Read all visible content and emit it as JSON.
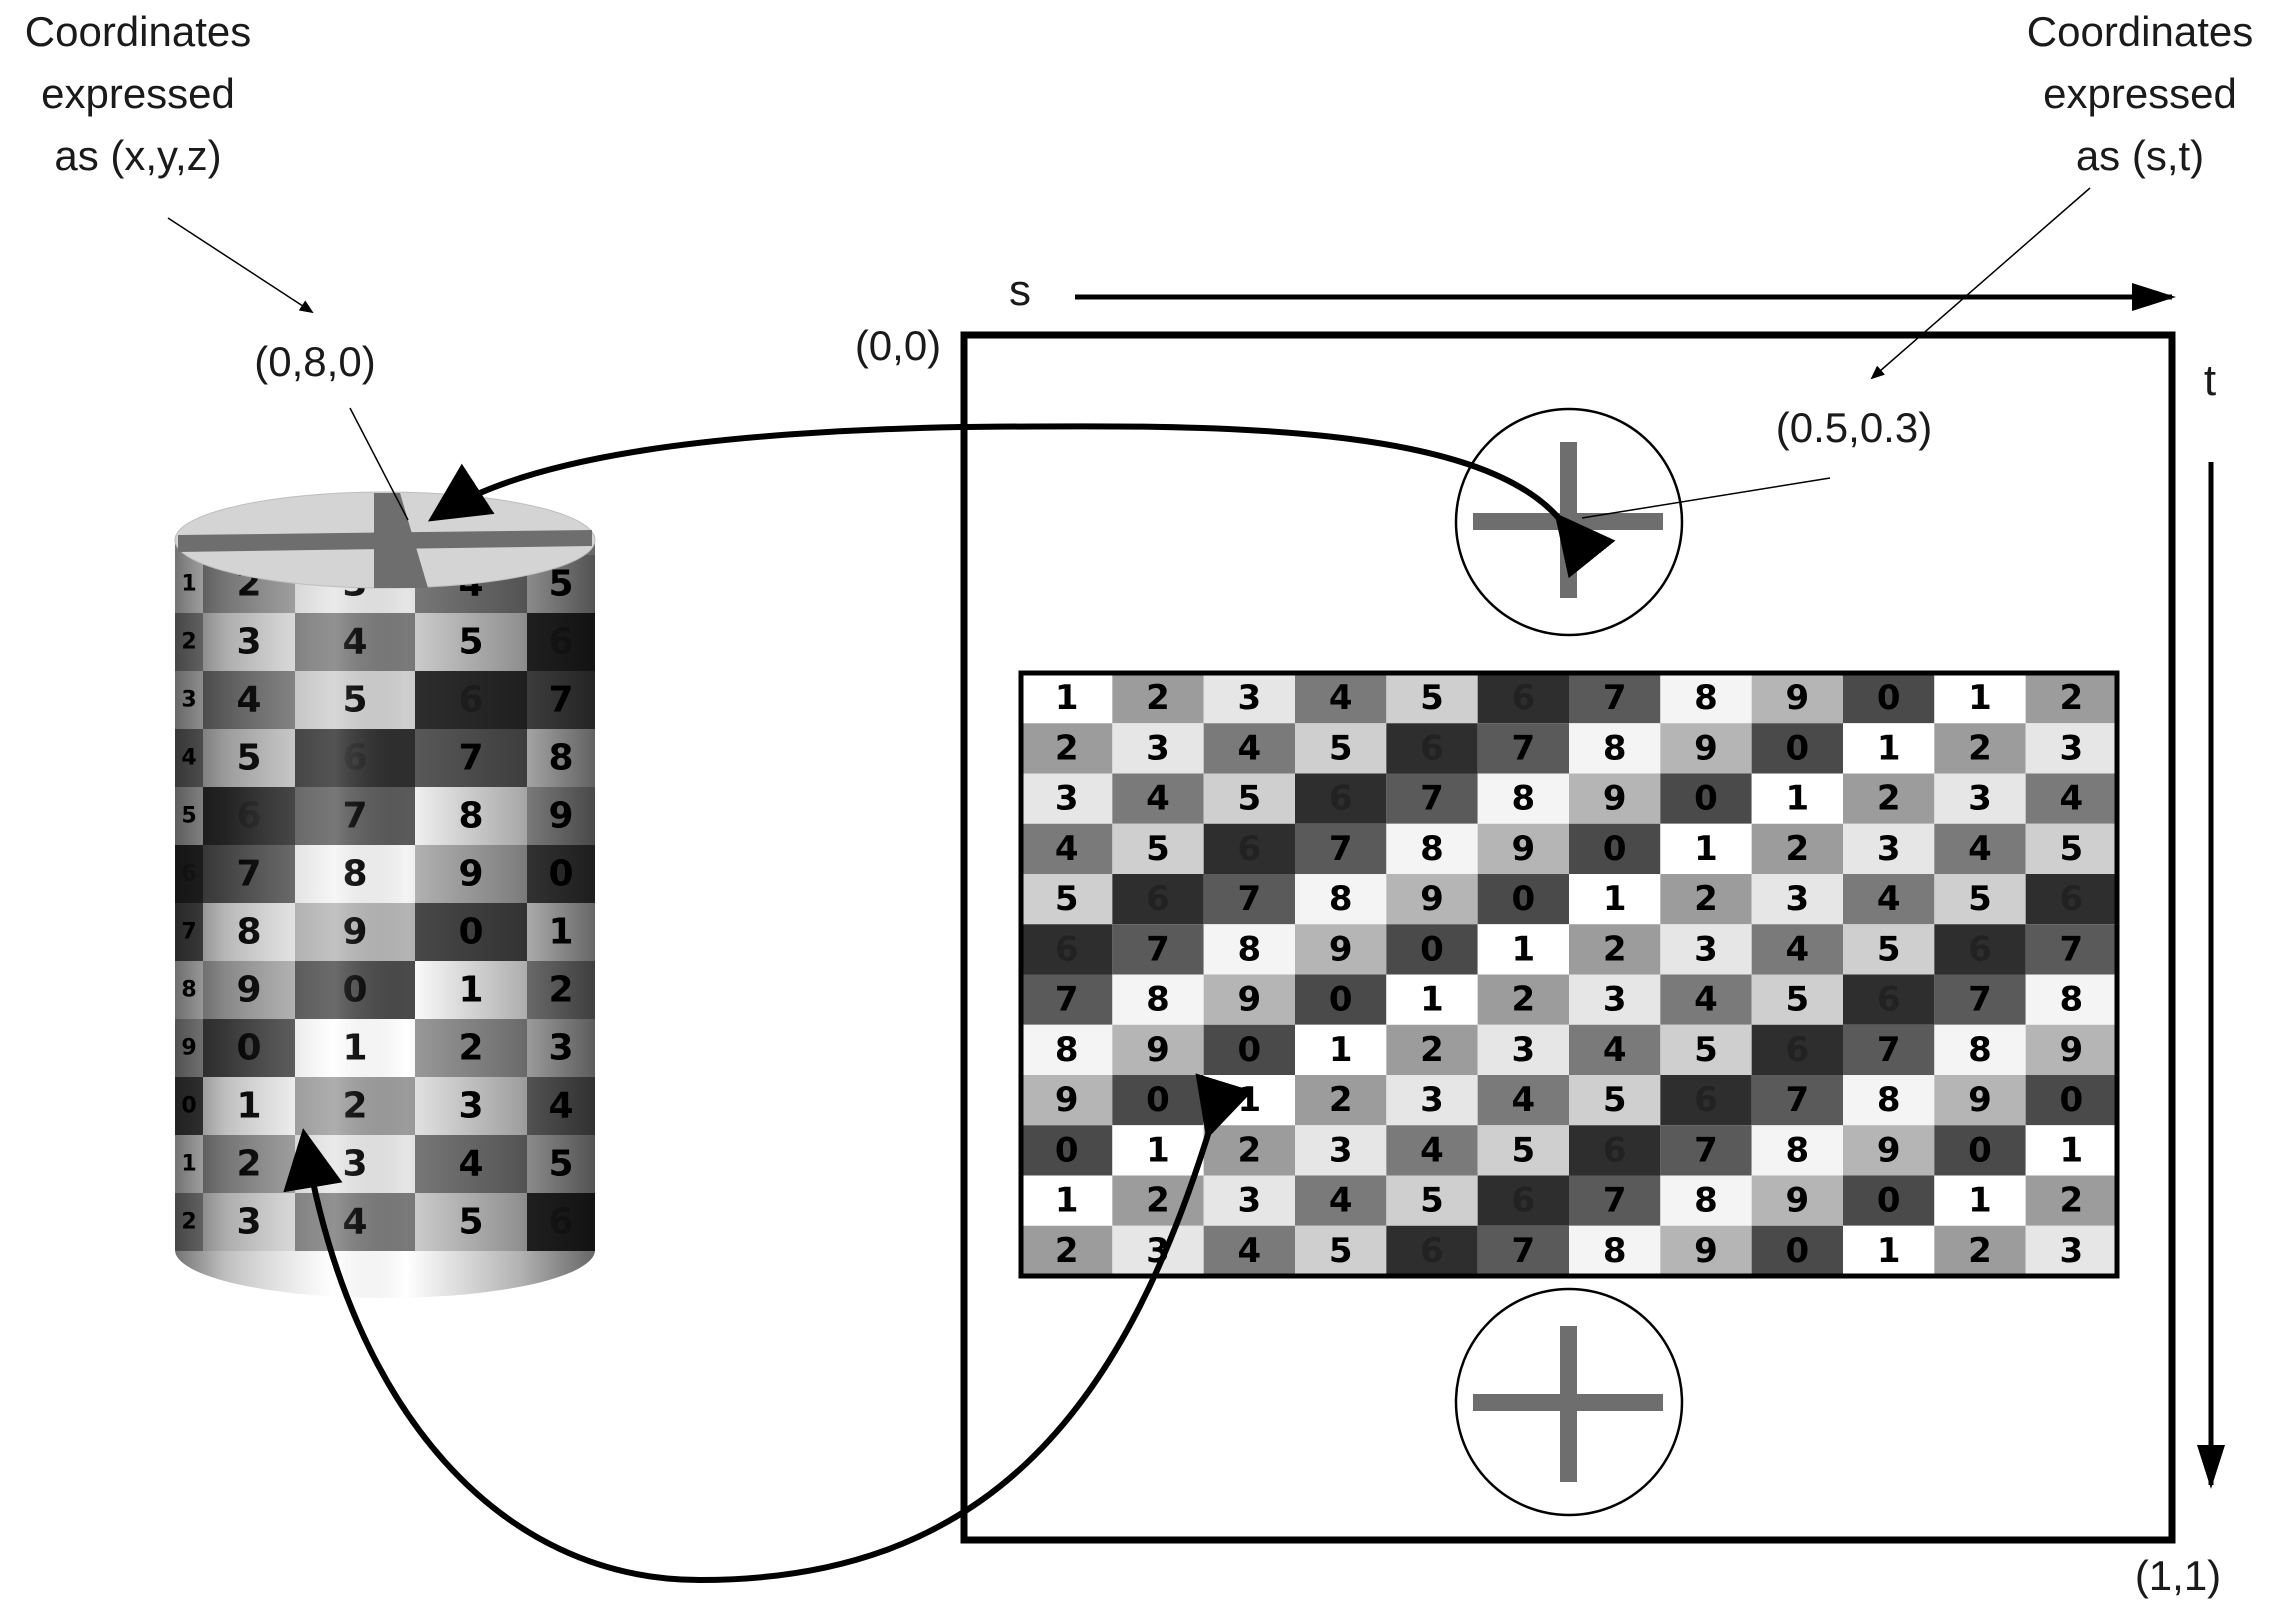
{
  "annotations": {
    "xyz_caption": [
      "Coordinates",
      "expressed",
      "as (x,y,z)"
    ],
    "st_caption": [
      "Coordinates",
      "expressed",
      "as (s,t)"
    ],
    "point_xyz": "(0,8,0)",
    "point_st": "(0.5,0.3)",
    "origin": "(0,0)",
    "corner": "(1,1)",
    "s_axis": "s",
    "t_axis": "t"
  },
  "texture": {
    "rows": [
      [
        "1",
        "2",
        "3",
        "4",
        "5",
        "6",
        "7",
        "8",
        "9",
        "0",
        "1",
        "2"
      ],
      [
        "2",
        "3",
        "4",
        "5",
        "6",
        "7",
        "8",
        "9",
        "0",
        "1",
        "2",
        "3"
      ],
      [
        "3",
        "4",
        "5",
        "6",
        "7",
        "8",
        "9",
        "0",
        "1",
        "2",
        "3",
        "4"
      ],
      [
        "4",
        "5",
        "6",
        "7",
        "8",
        "9",
        "0",
        "1",
        "2",
        "3",
        "4",
        "5"
      ],
      [
        "5",
        "6",
        "7",
        "8",
        "9",
        "0",
        "1",
        "2",
        "3",
        "4",
        "5",
        "6"
      ],
      [
        "6",
        "7",
        "8",
        "9",
        "0",
        "1",
        "2",
        "3",
        "4",
        "5",
        "6",
        "7"
      ],
      [
        "7",
        "8",
        "9",
        "0",
        "1",
        "2",
        "3",
        "4",
        "5",
        "6",
        "7",
        "8"
      ],
      [
        "8",
        "9",
        "0",
        "1",
        "2",
        "3",
        "4",
        "5",
        "6",
        "7",
        "8",
        "9"
      ],
      [
        "9",
        "0",
        "1",
        "2",
        "3",
        "4",
        "5",
        "6",
        "7",
        "8",
        "9",
        "0"
      ],
      [
        "0",
        "1",
        "2",
        "3",
        "4",
        "5",
        "6",
        "7",
        "8",
        "9",
        "0",
        "1"
      ],
      [
        "1",
        "2",
        "3",
        "4",
        "5",
        "6",
        "7",
        "8",
        "9",
        "0",
        "1",
        "2"
      ],
      [
        "2",
        "3",
        "4",
        "5",
        "6",
        "7",
        "8",
        "9",
        "0",
        "1",
        "2",
        "3"
      ]
    ],
    "digit_shades": {
      "0": "#4a4a4a",
      "1": "#ffffff",
      "2": "#9c9c9c",
      "3": "#e6e6e6",
      "4": "#7a7a7a",
      "5": "#cfcfcf",
      "6": "#2e2e2e",
      "7": "#5a5a5a",
      "8": "#f4f4f4",
      "9": "#b5b5b5"
    }
  },
  "cylinder": {
    "rows": [
      [
        "1",
        "2",
        "3",
        "4",
        "5"
      ],
      [
        "2",
        "3",
        "4",
        "5",
        "6"
      ],
      [
        "3",
        "4",
        "5",
        "6",
        "7"
      ],
      [
        "4",
        "5",
        "6",
        "7",
        "8"
      ],
      [
        "5",
        "6",
        "7",
        "8",
        "9"
      ],
      [
        "6",
        "7",
        "8",
        "9",
        "0"
      ],
      [
        "7",
        "8",
        "9",
        "0",
        "1"
      ],
      [
        "8",
        "9",
        "0",
        "1",
        "2"
      ],
      [
        "9",
        "0",
        "1",
        "2",
        "3"
      ],
      [
        "0",
        "1",
        "2",
        "3",
        "4"
      ],
      [
        "1",
        "2",
        "3",
        "4",
        "5"
      ],
      [
        "2",
        "3",
        "4",
        "5",
        "6"
      ]
    ]
  },
  "colors": {
    "ink": "#000000",
    "cross": "#6e6e6e",
    "cap": "#d4d4d4"
  }
}
